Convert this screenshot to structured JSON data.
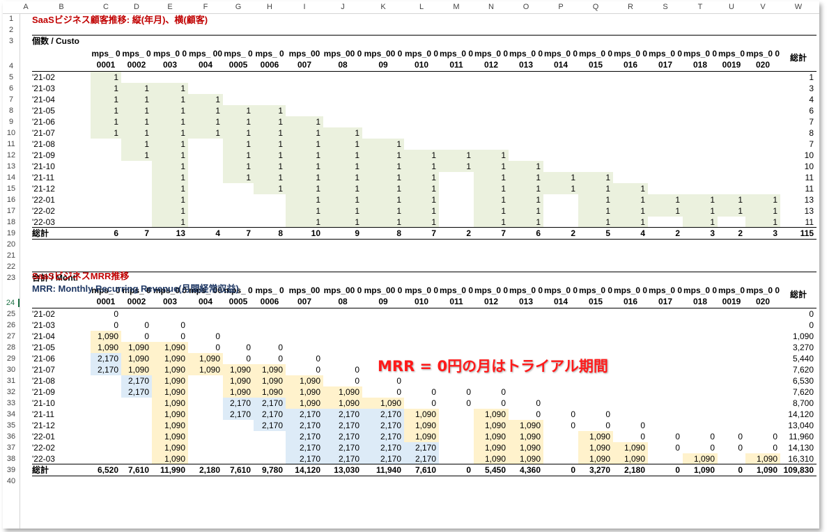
{
  "column_headers": [
    "A",
    "B",
    "C",
    "D",
    "E",
    "F",
    "G",
    "H",
    "I",
    "J",
    "K",
    "L",
    "M",
    "N",
    "O",
    "P",
    "Q",
    "R",
    "S",
    "T",
    "U",
    "V",
    "W"
  ],
  "row_headers": [
    "1",
    "2",
    "3",
    "4",
    "5",
    "6",
    "7",
    "8",
    "9",
    "10",
    "11",
    "12",
    "13",
    "14",
    "15",
    "16",
    "17",
    "18",
    "19",
    "20",
    "21",
    "22",
    "23",
    "24",
    "25",
    "26",
    "27",
    "28",
    "29",
    "30",
    "31",
    "32",
    "33",
    "34",
    "35",
    "36",
    "37",
    "38",
    "39",
    "40"
  ],
  "selected_row": "24",
  "colors": {
    "green_fill": "#ebf1de",
    "yellow_fill": "#fff2cc",
    "blue_fill": "#ddebf7",
    "title_red": "#c00000",
    "subtitle_blue": "#1f3864",
    "annotation_red": "#ff1a1a"
  },
  "section1": {
    "title": "SaaSビジネス顧客推移: 縦(年月)、横(顧客)",
    "table_label": "個数 / Custo",
    "customers": [
      "mps_ 00001",
      "mps_ 00002",
      "mps_0 0003",
      "mps_ 00004",
      "mps_ 00005",
      "mps_ 00006",
      "mps_00 007",
      "mps_00 008",
      "mps_00 009",
      "mps_0 0010",
      "mps_0 0011",
      "mps_0 0012",
      "mps_0 0013",
      "mps_0 0014",
      "mps_0 0015",
      "mps_0 0016",
      "mps_0 0017",
      "mps_0 0018",
      "mps_0 0019",
      "mps_0 0020"
    ],
    "total_header": "総計",
    "rows": [
      {
        "month": "'21-02",
        "values": [
          "1",
          "",
          "",
          "",
          "",
          "",
          "",
          "",
          "",
          "",
          "",
          "",
          "",
          "",
          "",
          "",
          "",
          "",
          "",
          ""
        ],
        "total": "1"
      },
      {
        "month": "'21-03",
        "values": [
          "1",
          "1",
          "1",
          "",
          "",
          "",
          "",
          "",
          "",
          "",
          "",
          "",
          "",
          "",
          "",
          "",
          "",
          "",
          "",
          ""
        ],
        "total": "3"
      },
      {
        "month": "'21-04",
        "values": [
          "1",
          "1",
          "1",
          "1",
          "",
          "",
          "",
          "",
          "",
          "",
          "",
          "",
          "",
          "",
          "",
          "",
          "",
          "",
          "",
          ""
        ],
        "total": "4"
      },
      {
        "month": "'21-05",
        "values": [
          "1",
          "1",
          "1",
          "1",
          "1",
          "1",
          "",
          "",
          "",
          "",
          "",
          "",
          "",
          "",
          "",
          "",
          "",
          "",
          "",
          ""
        ],
        "total": "6"
      },
      {
        "month": "'21-06",
        "values": [
          "1",
          "1",
          "1",
          "1",
          "1",
          "1",
          "1",
          "",
          "",
          "",
          "",
          "",
          "",
          "",
          "",
          "",
          "",
          "",
          "",
          ""
        ],
        "total": "7"
      },
      {
        "month": "'21-07",
        "values": [
          "1",
          "1",
          "1",
          "1",
          "1",
          "1",
          "1",
          "1",
          "",
          "",
          "",
          "",
          "",
          "",
          "",
          "",
          "",
          "",
          "",
          ""
        ],
        "total": "8"
      },
      {
        "month": "'21-08",
        "values": [
          "",
          "1",
          "1",
          "",
          "1",
          "1",
          "1",
          "1",
          "1",
          "",
          "",
          "",
          "",
          "",
          "",
          "",
          "",
          "",
          "",
          ""
        ],
        "total": "7"
      },
      {
        "month": "'21-09",
        "values": [
          "",
          "1",
          "1",
          "",
          "1",
          "1",
          "1",
          "1",
          "1",
          "1",
          "1",
          "1",
          "",
          "",
          "",
          "",
          "",
          "",
          "",
          ""
        ],
        "total": "10"
      },
      {
        "month": "'21-10",
        "values": [
          "",
          "",
          "1",
          "",
          "1",
          "1",
          "1",
          "1",
          "1",
          "1",
          "1",
          "1",
          "1",
          "",
          "",
          "",
          "",
          "",
          "",
          ""
        ],
        "total": "10"
      },
      {
        "month": "'21-11",
        "values": [
          "",
          "",
          "1",
          "",
          "1",
          "1",
          "1",
          "1",
          "1",
          "1",
          "",
          "1",
          "1",
          "1",
          "1",
          "",
          "",
          "",
          "",
          ""
        ],
        "total": "11"
      },
      {
        "month": "'21-12",
        "values": [
          "",
          "",
          "1",
          "",
          "",
          "1",
          "1",
          "1",
          "1",
          "1",
          "",
          "1",
          "1",
          "1",
          "1",
          "1",
          "",
          "",
          "",
          ""
        ],
        "total": "11"
      },
      {
        "month": "'22-01",
        "values": [
          "",
          "",
          "1",
          "",
          "",
          "",
          "1",
          "1",
          "1",
          "1",
          "",
          "1",
          "1",
          "",
          "1",
          "1",
          "1",
          "1",
          "1",
          "1"
        ],
        "total": "13"
      },
      {
        "month": "'22-02",
        "values": [
          "",
          "",
          "1",
          "",
          "",
          "",
          "1",
          "1",
          "1",
          "1",
          "",
          "1",
          "1",
          "",
          "1",
          "1",
          "1",
          "1",
          "1",
          "1"
        ],
        "total": "13"
      },
      {
        "month": "'22-03",
        "values": [
          "",
          "",
          "1",
          "",
          "",
          "",
          "1",
          "1",
          "1",
          "1",
          "",
          "1",
          "1",
          "",
          "1",
          "1",
          "",
          "1",
          "",
          "1"
        ],
        "total": "11"
      }
    ],
    "totals_label": "総計",
    "totals": [
      "6",
      "7",
      "13",
      "4",
      "7",
      "8",
      "10",
      "9",
      "8",
      "7",
      "2",
      "7",
      "6",
      "2",
      "5",
      "4",
      "2",
      "3",
      "2",
      "3"
    ],
    "grand_total": "115"
  },
  "section2": {
    "title": "SaaSビジネスMRR推移",
    "subtitle": "MRR: Monthly Recurring Revenue(月間経常収益)",
    "table_label": "合計 / Montl",
    "customers": [
      "mps_ 00001",
      "mps_ 00002",
      "mps_0 0003",
      "mps_ 00004",
      "mps_ 00005",
      "mps_ 00006",
      "mps_00 007",
      "mps_00 008",
      "mps_00 009",
      "mps_0 0010",
      "mps_0 0011",
      "mps_0 0012",
      "mps_0 0013",
      "mps_0 0014",
      "mps_0 0015",
      "mps_0 0016",
      "mps_0 0017",
      "mps_0 0018",
      "mps_0 0019",
      "mps_0 0020"
    ],
    "total_header": "総計",
    "rows": [
      {
        "month": "'21-02",
        "values": [
          "0",
          "",
          "",
          "",
          "",
          "",
          "",
          "",
          "",
          "",
          "",
          "",
          "",
          "",
          "",
          "",
          "",
          "",
          "",
          ""
        ],
        "total": "0"
      },
      {
        "month": "'21-03",
        "values": [
          "0",
          "0",
          "0",
          "",
          "",
          "",
          "",
          "",
          "",
          "",
          "",
          "",
          "",
          "",
          "",
          "",
          "",
          "",
          "",
          ""
        ],
        "total": "0"
      },
      {
        "month": "'21-04",
        "values": [
          "1,090",
          "0",
          "0",
          "0",
          "",
          "",
          "",
          "",
          "",
          "",
          "",
          "",
          "",
          "",
          "",
          "",
          "",
          "",
          "",
          ""
        ],
        "total": "1,090"
      },
      {
        "month": "'21-05",
        "values": [
          "1,090",
          "1,090",
          "1,090",
          "0",
          "0",
          "0",
          "",
          "",
          "",
          "",
          "",
          "",
          "",
          "",
          "",
          "",
          "",
          "",
          "",
          ""
        ],
        "total": "3,270"
      },
      {
        "month": "'21-06",
        "values": [
          "2,170",
          "1,090",
          "1,090",
          "1,090",
          "0",
          "0",
          "0",
          "",
          "",
          "",
          "",
          "",
          "",
          "",
          "",
          "",
          "",
          "",
          "",
          ""
        ],
        "total": "5,440"
      },
      {
        "month": "'21-07",
        "values": [
          "2,170",
          "1,090",
          "1,090",
          "1,090",
          "1,090",
          "1,090",
          "0",
          "0",
          "",
          "",
          "",
          "",
          "",
          "",
          "",
          "",
          "",
          "",
          "",
          ""
        ],
        "total": "7,620"
      },
      {
        "month": "'21-08",
        "values": [
          "",
          "2,170",
          "1,090",
          "",
          "1,090",
          "1,090",
          "1,090",
          "0",
          "0",
          "",
          "",
          "",
          "",
          "",
          "",
          "",
          "",
          "",
          "",
          ""
        ],
        "total": "6,530"
      },
      {
        "month": "'21-09",
        "values": [
          "",
          "2,170",
          "1,090",
          "",
          "1,090",
          "1,090",
          "1,090",
          "1,090",
          "0",
          "0",
          "0",
          "0",
          "",
          "",
          "",
          "",
          "",
          "",
          "",
          ""
        ],
        "total": "7,620"
      },
      {
        "month": "'21-10",
        "values": [
          "",
          "",
          "1,090",
          "",
          "2,170",
          "2,170",
          "1,090",
          "1,090",
          "1,090",
          "0",
          "0",
          "0",
          "0",
          "",
          "",
          "",
          "",
          "",
          "",
          ""
        ],
        "total": "8,700"
      },
      {
        "month": "'21-11",
        "values": [
          "",
          "",
          "1,090",
          "",
          "2,170",
          "2,170",
          "2,170",
          "2,170",
          "2,170",
          "1,090",
          "",
          "1,090",
          "0",
          "0",
          "0",
          "",
          "",
          "",
          "",
          ""
        ],
        "total": "14,120"
      },
      {
        "month": "'21-12",
        "values": [
          "",
          "",
          "1,090",
          "",
          "",
          "2,170",
          "2,170",
          "2,170",
          "2,170",
          "1,090",
          "",
          "1,090",
          "1,090",
          "0",
          "0",
          "0",
          "",
          "",
          "",
          ""
        ],
        "total": "13,040"
      },
      {
        "month": "'22-01",
        "values": [
          "",
          "",
          "1,090",
          "",
          "",
          "",
          "2,170",
          "2,170",
          "2,170",
          "1,090",
          "",
          "1,090",
          "1,090",
          "",
          "1,090",
          "0",
          "0",
          "0",
          "0",
          "0"
        ],
        "total": "11,960"
      },
      {
        "month": "'22-02",
        "values": [
          "",
          "",
          "1,090",
          "",
          "",
          "",
          "2,170",
          "2,170",
          "2,170",
          "2,170",
          "",
          "1,090",
          "1,090",
          "",
          "1,090",
          "1,090",
          "0",
          "0",
          "0",
          "0"
        ],
        "total": "14,130"
      },
      {
        "month": "'22-03",
        "values": [
          "",
          "",
          "1,090",
          "",
          "",
          "",
          "2,170",
          "2,170",
          "2,170",
          "2,170",
          "",
          "1,090",
          "1,090",
          "",
          "1,090",
          "1,090",
          "",
          "1,090",
          "",
          "1,090"
        ],
        "total": "16,310"
      }
    ],
    "totals_label": "総計",
    "totals": [
      "6,520",
      "7,610",
      "11,990",
      "2,180",
      "7,610",
      "9,780",
      "14,120",
      "13,030",
      "11,940",
      "7,610",
      "0",
      "5,450",
      "4,360",
      "0",
      "3,270",
      "2,180",
      "0",
      "1,090",
      "0",
      "1,090"
    ],
    "grand_total": "109,830"
  },
  "annotation": "MRR = 0円の月はトライアル期間"
}
